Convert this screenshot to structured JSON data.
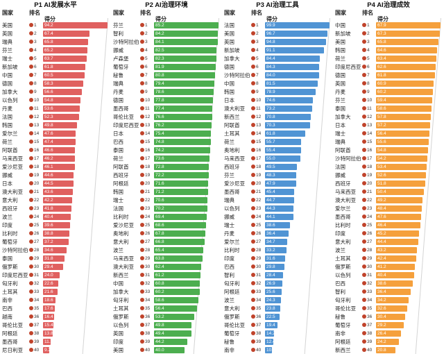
{
  "chart_data": [
    {
      "type": "bar",
      "orientation": "horizontal",
      "title": "P1 AI发展水平",
      "column_headers": {
        "country": "国家",
        "rank": "排名",
        "score": "得分"
      },
      "bar_color": "#e0605f",
      "rank_dot_color": "#c0432b",
      "xlim": [
        0,
        100
      ],
      "legend": "none",
      "rows": [
        {
          "country": "美国",
          "rank": 1,
          "score": 94.2
        },
        {
          "country": "英国",
          "rank": 2,
          "score": 67.4
        },
        {
          "country": "瑞典",
          "rank": 3,
          "score": 65.8
        },
        {
          "country": "芬兰",
          "rank": 4,
          "score": 65.2
        },
        {
          "country": "瑞士",
          "rank": 5,
          "score": 63.7
        },
        {
          "country": "新加坡",
          "rank": 6,
          "score": 61.8
        },
        {
          "country": "中国",
          "rank": 7,
          "score": 60.5
        },
        {
          "country": "德国",
          "rank": 8,
          "score": 58.3
        },
        {
          "country": "加拿大",
          "rank": 9,
          "score": 56.6
        },
        {
          "country": "以色列",
          "rank": 10,
          "score": 54.8
        },
        {
          "country": "丹麦",
          "rank": 11,
          "score": 53.6
        },
        {
          "country": "法国",
          "rank": 12,
          "score": 52.3
        },
        {
          "country": "韩国",
          "rank": 13,
          "score": 49.8
        },
        {
          "country": "爱尔兰",
          "rank": 14,
          "score": 47.6
        },
        {
          "country": "荷兰",
          "rank": 15,
          "score": 47.4
        },
        {
          "country": "阿联酋",
          "rank": 16,
          "score": 46.6
        },
        {
          "country": "马来西亚",
          "rank": 17,
          "score": 46.2
        },
        {
          "country": "爱沙尼亚",
          "rank": 18,
          "score": 46.1
        },
        {
          "country": "挪威",
          "rank": 19,
          "score": 44.6
        },
        {
          "country": "日本",
          "rank": 20,
          "score": 44.5
        },
        {
          "country": "澳大利亚",
          "rank": 21,
          "score": 43.6
        },
        {
          "country": "意大利",
          "rank": 22,
          "score": 42.2
        },
        {
          "country": "西班牙",
          "rank": 23,
          "score": 41.8
        },
        {
          "country": "波兰",
          "rank": 24,
          "score": 40.4
        },
        {
          "country": "印度",
          "rank": 25,
          "score": 39.6
        },
        {
          "country": "比利时",
          "rank": 26,
          "score": 38.8
        },
        {
          "country": "葡萄牙",
          "rank": 27,
          "score": 37.2
        },
        {
          "country": "沙特阿拉伯",
          "rank": 28,
          "score": 34.6
        },
        {
          "country": "泰国",
          "rank": 29,
          "score": 31.8
        },
        {
          "country": "俄罗斯",
          "rank": 30,
          "score": 29.4
        },
        {
          "country": "印度尼西亚",
          "rank": 31,
          "score": 24.0
        },
        {
          "country": "匈牙利",
          "rank": 32,
          "score": 22.6
        },
        {
          "country": "土耳其",
          "rank": 33,
          "score": 21.6
        },
        {
          "country": "南非",
          "rank": 34,
          "score": 18.6
        },
        {
          "country": "巴西",
          "rank": 35,
          "score": 17.6
        },
        {
          "country": "越南",
          "rank": 36,
          "score": 16.4
        },
        {
          "country": "哥伦比亚",
          "rank": 37,
          "score": 15.4
        },
        {
          "country": "阿根廷",
          "rank": 38,
          "score": 13.8
        },
        {
          "country": "墨西哥",
          "rank": 39,
          "score": 11.2
        },
        {
          "country": "尼日利亚",
          "rank": 40,
          "score": 9.2
        }
      ]
    },
    {
      "type": "bar",
      "orientation": "horizontal",
      "title": "P2 AI治理环境",
      "column_headers": {
        "country": "国家",
        "rank": "排名",
        "score": "得分"
      },
      "bar_color": "#4cae4f",
      "rank_dot_color": "#c0432b",
      "xlim": [
        0,
        100
      ],
      "legend": "none",
      "rows": [
        {
          "country": "芬兰",
          "rank": 1,
          "score": 85.2
        },
        {
          "country": "智利",
          "rank": 2,
          "score": 84.2
        },
        {
          "country": "沙特阿拉伯",
          "rank": 3,
          "score": 84.1
        },
        {
          "country": "挪威",
          "rank": 4,
          "score": 82.5
        },
        {
          "country": "卢森堡",
          "rank": 5,
          "score": 82.3
        },
        {
          "country": "葡萄牙",
          "rank": 6,
          "score": 81.9
        },
        {
          "country": "秘鲁",
          "rank": 7,
          "score": 80.8
        },
        {
          "country": "瑞典",
          "rank": 8,
          "score": 79.4
        },
        {
          "country": "丹麦",
          "rank": 9,
          "score": 78.6
        },
        {
          "country": "德国",
          "rank": 10,
          "score": 77.8
        },
        {
          "country": "墨西哥",
          "rank": 11,
          "score": 77.4
        },
        {
          "country": "哥伦比亚",
          "rank": 12,
          "score": 76.6
        },
        {
          "country": "印度尼西亚",
          "rank": 13,
          "score": 76.2
        },
        {
          "country": "日本",
          "rank": 14,
          "score": 75.4
        },
        {
          "country": "巴西",
          "rank": 15,
          "score": 74.8
        },
        {
          "country": "泰国",
          "rank": 16,
          "score": 74.2
        },
        {
          "country": "荷兰",
          "rank": 17,
          "score": 73.6
        },
        {
          "country": "阿联酋",
          "rank": 18,
          "score": 72.8
        },
        {
          "country": "西班牙",
          "rank": 19,
          "score": 72.2
        },
        {
          "country": "阿根廷",
          "rank": 20,
          "score": 71.6
        },
        {
          "country": "韩国",
          "rank": 21,
          "score": 71.2
        },
        {
          "country": "瑞士",
          "rank": 22,
          "score": 70.6
        },
        {
          "country": "法国",
          "rank": 23,
          "score": 70.2
        },
        {
          "country": "比利时",
          "rank": 24,
          "score": 69.4
        },
        {
          "country": "爱沙尼亚",
          "rank": 25,
          "score": 68.6
        },
        {
          "country": "奥地利",
          "rank": 26,
          "score": 67.8
        },
        {
          "country": "意大利",
          "rank": 27,
          "score": 66.8
        },
        {
          "country": "波兰",
          "rank": 28,
          "score": 65.4
        },
        {
          "country": "马来西亚",
          "rank": 29,
          "score": 63.8
        },
        {
          "country": "澳大利亚",
          "rank": 30,
          "score": 62.4
        },
        {
          "country": "新西兰",
          "rank": 31,
          "score": 61.2
        },
        {
          "country": "中国",
          "rank": 32,
          "score": 60.8
        },
        {
          "country": "加拿大",
          "rank": 33,
          "score": 60.2
        },
        {
          "country": "匈牙利",
          "rank": 34,
          "score": 58.6
        },
        {
          "country": "土耳其",
          "rank": 35,
          "score": 56.4
        },
        {
          "country": "俄罗斯",
          "rank": 36,
          "score": 53.2
        },
        {
          "country": "以色列",
          "rank": 37,
          "score": 49.8
        },
        {
          "country": "英国",
          "rank": 38,
          "score": 49.4
        },
        {
          "country": "印度",
          "rank": 39,
          "score": 44.2
        },
        {
          "country": "美国",
          "rank": 40,
          "score": 40.0
        }
      ]
    },
    {
      "type": "bar",
      "orientation": "horizontal",
      "title": "P3 AI治理工具",
      "column_headers": {
        "country": "国家",
        "rank": "排名",
        "score": "得分"
      },
      "bar_color": "#5094d4",
      "rank_dot_color": "#c0432b",
      "xlim": [
        0,
        100
      ],
      "legend": "none",
      "rows": [
        {
          "country": "法国",
          "rank": 1,
          "score": 99.9
        },
        {
          "country": "美国",
          "rank": 2,
          "score": 96.7
        },
        {
          "country": "英国",
          "rank": 3,
          "score": 94.8
        },
        {
          "country": "新加坡",
          "rank": 4,
          "score": 91.1
        },
        {
          "country": "加拿大",
          "rank": 5,
          "score": 84.4
        },
        {
          "country": "德国",
          "rank": 6,
          "score": 84.3
        },
        {
          "country": "沙特阿拉伯",
          "rank": 7,
          "score": 84.0
        },
        {
          "country": "中国",
          "rank": 8,
          "score": 81.5
        },
        {
          "country": "韩国",
          "rank": 9,
          "score": 78.9
        },
        {
          "country": "日本",
          "rank": 10,
          "score": 74.6
        },
        {
          "country": "澳大利亚",
          "rank": 11,
          "score": 73.2
        },
        {
          "country": "新西兰",
          "rank": 12,
          "score": 70.8
        },
        {
          "country": "阿联酋",
          "rank": 13,
          "score": 70.3
        },
        {
          "country": "土耳其",
          "rank": 14,
          "score": 61.8
        },
        {
          "country": "荷兰",
          "rank": 15,
          "score": 55.7
        },
        {
          "country": "奥地利",
          "rank": 16,
          "score": 55.4
        },
        {
          "country": "马来西亚",
          "rank": 17,
          "score": 55.0
        },
        {
          "country": "西班牙",
          "rank": 18,
          "score": 49.5
        },
        {
          "country": "芬兰",
          "rank": 19,
          "score": 48.3
        },
        {
          "country": "爱沙尼亚",
          "rank": 20,
          "score": 47.9
        },
        {
          "country": "墨西哥",
          "rank": 21,
          "score": 45.4
        },
        {
          "country": "瑞典",
          "rank": 22,
          "score": 44.7
        },
        {
          "country": "以色列",
          "rank": 23,
          "score": 44.3
        },
        {
          "country": "挪威",
          "rank": 24,
          "score": 44.1
        },
        {
          "country": "瑞士",
          "rank": 25,
          "score": 38.6
        },
        {
          "country": "丹麦",
          "rank": 26,
          "score": 36.4
        },
        {
          "country": "爱尔兰",
          "rank": 27,
          "score": 34.7
        },
        {
          "country": "比利时",
          "rank": 28,
          "score": 33.2
        },
        {
          "country": "印度",
          "rank": 29,
          "score": 31.6
        },
        {
          "country": "巴西",
          "rank": 30,
          "score": 29.8
        },
        {
          "country": "智利",
          "rank": 31,
          "score": 28.4
        },
        {
          "country": "匈牙利",
          "rank": 32,
          "score": 26.9
        },
        {
          "country": "阿根廷",
          "rank": 33,
          "score": 25.6
        },
        {
          "country": "波兰",
          "rank": 34,
          "score": 24.3
        },
        {
          "country": "意大利",
          "rank": 35,
          "score": 23.8
        },
        {
          "country": "俄罗斯",
          "rank": 36,
          "score": 22.5
        },
        {
          "country": "哥伦比亚",
          "rank": 37,
          "score": 19.4
        },
        {
          "country": "葡萄牙",
          "rank": 38,
          "score": 14.2
        },
        {
          "country": "秘鲁",
          "rank": 39,
          "score": 12.4
        },
        {
          "country": "南非",
          "rank": 40,
          "score": 10.3
        }
      ]
    },
    {
      "type": "bar",
      "orientation": "horizontal",
      "title": "P4 AI治理成效",
      "column_headers": {
        "country": "国家",
        "rank": "排名",
        "score": "得分"
      },
      "bar_color": "#f5a03c",
      "rank_dot_color": "#c0432b",
      "xlim": [
        0,
        100
      ],
      "legend": "none",
      "rows": [
        {
          "country": "中国",
          "rank": 1,
          "score": 67.9
        },
        {
          "country": "新加坡",
          "rank": 2,
          "score": 67.3
        },
        {
          "country": "美国",
          "rank": 3,
          "score": 65.8
        },
        {
          "country": "韩国",
          "rank": 4,
          "score": 64.6
        },
        {
          "country": "荷兰",
          "rank": 5,
          "score": 63.4
        },
        {
          "country": "印度尼西亚",
          "rank": 6,
          "score": 62.6
        },
        {
          "country": "德国",
          "rank": 7,
          "score": 61.8
        },
        {
          "country": "英国",
          "rank": 8,
          "score": 60.9
        },
        {
          "country": "丹麦",
          "rank": 9,
          "score": 60.2
        },
        {
          "country": "芬兰",
          "rank": 10,
          "score": 59.4
        },
        {
          "country": "泰国",
          "rank": 11,
          "score": 58.6
        },
        {
          "country": "加拿大",
          "rank": 12,
          "score": 57.8
        },
        {
          "country": "日本",
          "rank": 13,
          "score": 57.2
        },
        {
          "country": "瑞士",
          "rank": 14,
          "score": 56.4
        },
        {
          "country": "瑞典",
          "rank": 15,
          "score": 55.6
        },
        {
          "country": "阿联酋",
          "rank": 16,
          "score": 54.8
        },
        {
          "country": "沙特阿拉伯",
          "rank": 17,
          "score": 54.2
        },
        {
          "country": "法国",
          "rank": 18,
          "score": 53.4
        },
        {
          "country": "挪威",
          "rank": 19,
          "score": 52.6
        },
        {
          "country": "西班牙",
          "rank": 20,
          "score": 51.8
        },
        {
          "country": "马来西亚",
          "rank": 21,
          "score": 50.4
        },
        {
          "country": "澳大利亚",
          "rank": 22,
          "score": 49.2
        },
        {
          "country": "爱尔兰",
          "rank": 23,
          "score": 48.4
        },
        {
          "country": "墨西哥",
          "rank": 24,
          "score": 47.6
        },
        {
          "country": "比利时",
          "rank": 25,
          "score": 46.4
        },
        {
          "country": "印度",
          "rank": 26,
          "score": 45.2
        },
        {
          "country": "意大利",
          "rank": 27,
          "score": 44.4
        },
        {
          "country": "波兰",
          "rank": 28,
          "score": 43.2
        },
        {
          "country": "土耳其",
          "rank": 29,
          "score": 42.4
        },
        {
          "country": "俄罗斯",
          "rank": 30,
          "score": 41.2
        },
        {
          "country": "以色列",
          "rank": 31,
          "score": 40.4
        },
        {
          "country": "巴西",
          "rank": 32,
          "score": 38.6
        },
        {
          "country": "智利",
          "rank": 33,
          "score": 36.4
        },
        {
          "country": "匈牙利",
          "rank": 34,
          "score": 34.2
        },
        {
          "country": "哥伦比亚",
          "rank": 35,
          "score": 32.6
        },
        {
          "country": "秘鲁",
          "rank": 36,
          "score": 30.4
        },
        {
          "country": "葡萄牙",
          "rank": 37,
          "score": 29.2
        },
        {
          "country": "南非",
          "rank": 38,
          "score": 26.4
        },
        {
          "country": "阿根廷",
          "rank": 39,
          "score": 24.2
        },
        {
          "country": "新西兰",
          "rank": 40,
          "score": 20.8
        }
      ]
    }
  ]
}
